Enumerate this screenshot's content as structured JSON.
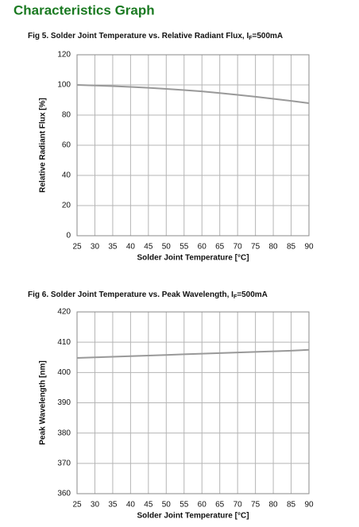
{
  "header": {
    "title": "Characteristics Graph"
  },
  "chart_data": [
    {
      "type": "line",
      "title": "Fig 5. Solder Joint Temperature vs. Relative Radiant Flux, I",
      "title_sub": "F",
      "title_end": "=500mA",
      "x_label": "Solder Joint Temperature [°C]",
      "y_label": "Relative Radiant Flux [%]",
      "x": [
        25,
        30,
        35,
        40,
        45,
        50,
        55,
        60,
        65,
        70,
        75,
        80,
        85,
        90
      ],
      "series": [
        {
          "name": "Relative Radiant Flux",
          "color": "#999999",
          "values": [
            100,
            99.6,
            99.2,
            98.7,
            98.1,
            97.4,
            96.6,
            95.7,
            94.6,
            93.4,
            92.2,
            90.8,
            89.4,
            87.9
          ]
        }
      ],
      "xlim": [
        25,
        90
      ],
      "xticks": [
        25,
        30,
        35,
        40,
        45,
        50,
        55,
        60,
        65,
        70,
        75,
        80,
        85,
        90
      ],
      "ylim": [
        0,
        120
      ],
      "yticks": [
        0,
        20,
        40,
        60,
        80,
        100,
        120
      ],
      "grid": true
    },
    {
      "type": "line",
      "title": "Fig 6. Solder Joint Temperature vs. Peak Wavelength, I",
      "title_sub": "F",
      "title_end": "=500mA",
      "x_label": "Solder Joint Temperature [°C]",
      "y_label": "Peak Wavelength [nm]",
      "x": [
        25,
        30,
        35,
        40,
        45,
        50,
        55,
        60,
        65,
        70,
        75,
        80,
        85,
        90
      ],
      "series": [
        {
          "name": "Peak Wavelength",
          "color": "#999999",
          "values": [
            404.8,
            405.0,
            405.2,
            405.4,
            405.6,
            405.8,
            406.0,
            406.2,
            406.4,
            406.6,
            406.8,
            407.0,
            407.2,
            407.5
          ]
        }
      ],
      "xlim": [
        25,
        90
      ],
      "xticks": [
        25,
        30,
        35,
        40,
        45,
        50,
        55,
        60,
        65,
        70,
        75,
        80,
        85,
        90
      ],
      "ylim": [
        360,
        420
      ],
      "yticks": [
        360,
        370,
        380,
        390,
        400,
        410,
        420
      ],
      "grid": true
    }
  ]
}
